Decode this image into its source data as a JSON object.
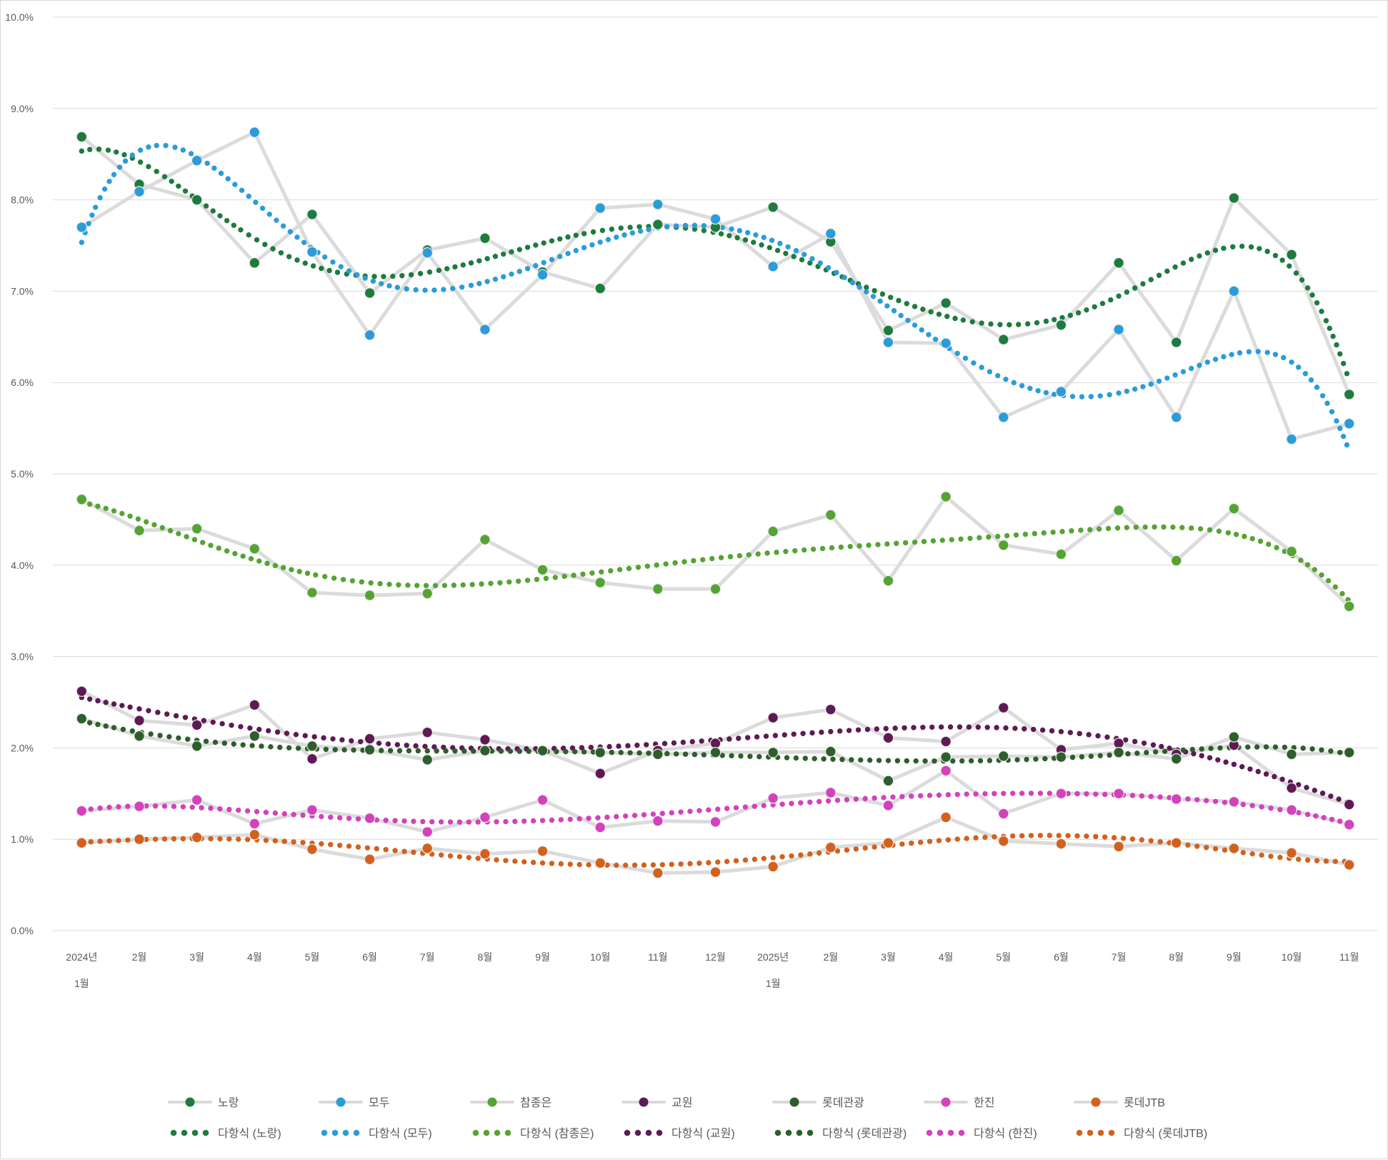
{
  "chart_data": {
    "type": "line",
    "title": "",
    "grid": true,
    "background": "#ffffff",
    "connector_line_color": "#dbdbdb",
    "gridline_color": "#d9d9d9",
    "axis_text_color": "#595959",
    "y_axis": {
      "min": 0,
      "max": 10,
      "step": 1,
      "tick_labels": [
        "0.0%",
        "1.0%",
        "2.0%",
        "3.0%",
        "4.0%",
        "5.0%",
        "6.0%",
        "7.0%",
        "8.0%",
        "9.0%",
        "10.0%"
      ]
    },
    "x_axis": {
      "categories": [
        {
          "label": "2024년",
          "sub": "1월"
        },
        {
          "label": "2월"
        },
        {
          "label": "3월"
        },
        {
          "label": "4월"
        },
        {
          "label": "5월"
        },
        {
          "label": "6월"
        },
        {
          "label": "7월"
        },
        {
          "label": "8월"
        },
        {
          "label": "9월"
        },
        {
          "label": "10월"
        },
        {
          "label": "11월"
        },
        {
          "label": "12월"
        },
        {
          "label": "2025년",
          "sub": "1월"
        },
        {
          "label": "2월"
        },
        {
          "label": "3월"
        },
        {
          "label": "4월"
        },
        {
          "label": "5월"
        },
        {
          "label": "6월"
        },
        {
          "label": "7월"
        },
        {
          "label": "8월"
        },
        {
          "label": "9월"
        },
        {
          "label": "10월"
        },
        {
          "label": "11월"
        }
      ]
    },
    "series": [
      {
        "key": "norang",
        "name": "노랑",
        "color": "#1e7b3d",
        "values": [
          8.69,
          8.17,
          8.0,
          7.31,
          7.84,
          6.98,
          7.45,
          7.58,
          7.21,
          7.03,
          7.73,
          7.7,
          7.92,
          7.54,
          6.57,
          6.87,
          6.47,
          6.63,
          7.31,
          6.44,
          8.02,
          7.4,
          5.87
        ]
      },
      {
        "key": "modu",
        "name": "모두",
        "color": "#2b9cd8",
        "values": [
          7.7,
          8.09,
          8.43,
          8.74,
          7.43,
          6.52,
          7.42,
          6.58,
          7.18,
          7.91,
          7.95,
          7.79,
          7.27,
          7.63,
          6.44,
          6.43,
          5.62,
          5.9,
          6.58,
          5.62,
          7.0,
          5.38,
          5.55
        ]
      },
      {
        "key": "chamjoeun",
        "name": "참종은",
        "color": "#56a333",
        "values": [
          4.72,
          4.38,
          4.4,
          4.18,
          3.7,
          3.67,
          3.69,
          4.28,
          3.95,
          3.81,
          3.74,
          3.74,
          4.37,
          4.55,
          3.83,
          4.75,
          4.22,
          4.12,
          4.6,
          4.05,
          4.62,
          4.15,
          3.55
        ]
      },
      {
        "key": "gyowon",
        "name": "교원",
        "color": "#5e1a54",
        "values": [
          2.62,
          2.3,
          2.25,
          2.47,
          1.88,
          2.1,
          2.17,
          2.09,
          1.97,
          1.72,
          1.97,
          2.05,
          2.33,
          2.42,
          2.11,
          2.07,
          2.44,
          1.98,
          2.05,
          1.93,
          2.03,
          1.56,
          1.38
        ]
      },
      {
        "key": "lottetour",
        "name": "롯데관광",
        "color": "#2d5e2b",
        "values": [
          2.32,
          2.13,
          2.02,
          2.13,
          2.02,
          1.98,
          1.87,
          1.97,
          1.97,
          1.95,
          1.93,
          1.95,
          1.95,
          1.96,
          1.64,
          1.9,
          1.91,
          1.9,
          1.95,
          1.88,
          2.12,
          1.93,
          1.95
        ]
      },
      {
        "key": "hanjin",
        "name": "한진",
        "color": "#d341bd",
        "values": [
          1.31,
          1.36,
          1.43,
          1.17,
          1.32,
          1.23,
          1.08,
          1.24,
          1.43,
          1.13,
          1.2,
          1.19,
          1.45,
          1.51,
          1.37,
          1.75,
          1.28,
          1.5,
          1.5,
          1.44,
          1.41,
          1.32,
          1.16
        ]
      },
      {
        "key": "lottejtb",
        "name": "롯데JTB",
        "color": "#d2611e",
        "values": [
          0.96,
          1.0,
          1.02,
          1.05,
          0.89,
          0.78,
          0.9,
          0.84,
          0.87,
          0.74,
          0.63,
          0.64,
          0.7,
          0.91,
          0.96,
          1.24,
          0.98,
          0.95,
          0.92,
          0.96,
          0.9,
          0.85,
          0.72
        ]
      }
    ],
    "trendlines": [
      {
        "key": "norang",
        "name": "다항식 (노랑)",
        "type": "polynomial",
        "degree": 6
      },
      {
        "key": "modu",
        "name": "다항식 (모두)",
        "type": "polynomial",
        "degree": 6
      },
      {
        "key": "chamjoeun",
        "name": "다항식 (참종은)",
        "type": "polynomial",
        "degree": 6
      },
      {
        "key": "gyowon",
        "name": "다항식 (교원)",
        "type": "polynomial",
        "degree": 6
      },
      {
        "key": "lottetour",
        "name": "다항식 (롯데관광)",
        "type": "polynomial",
        "degree": 6
      },
      {
        "key": "hanjin",
        "name": "다항식 (한진)",
        "type": "polynomial",
        "degree": 6
      },
      {
        "key": "lottejtb",
        "name": "다항식 (롯데JTB)",
        "type": "polynomial",
        "degree": 6
      }
    ],
    "legend_position": "bottom"
  }
}
